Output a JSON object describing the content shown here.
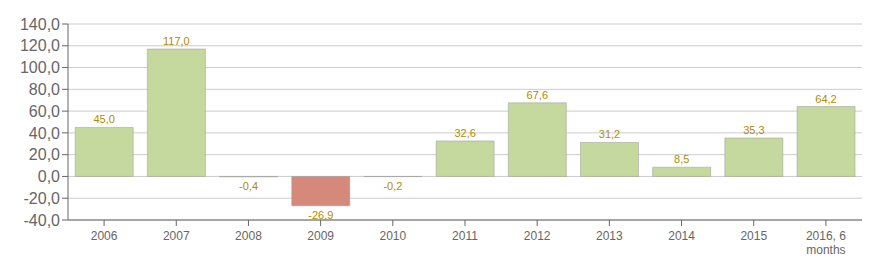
{
  "chart_data": {
    "type": "bar",
    "categories": [
      "2006",
      "2007",
      "2008",
      "2009",
      "2010",
      "2011",
      "2012",
      "2013",
      "2014",
      "2015",
      "2016, 6\nmonths"
    ],
    "values": [
      45.0,
      117.0,
      -0.4,
      -26.9,
      -0.2,
      32.6,
      67.6,
      31.2,
      8.5,
      35.3,
      64.2
    ],
    "value_labels": [
      "45,0",
      "117,0",
      "-0,4",
      "-26,9",
      "-0,2",
      "32,6",
      "67,6",
      "31,2",
      "8,5",
      "35,3",
      "64,2"
    ],
    "colors": [
      "#c5d89d",
      "#c5d89d",
      "#c5d89d",
      "#d4897a",
      "#c5d89d",
      "#c5d89d",
      "#c5d89d",
      "#c5d89d",
      "#c5d89d",
      "#c5d89d",
      "#c5d89d"
    ],
    "ylim": [
      -40,
      140
    ],
    "yticks": [
      {
        "value": -40,
        "label": "-40,0"
      },
      {
        "value": -20,
        "label": "-20,0"
      },
      {
        "value": 0,
        "label": "0,0"
      },
      {
        "value": 20,
        "label": "20,0"
      },
      {
        "value": 40,
        "label": "40,0"
      },
      {
        "value": 60,
        "label": "60,0"
      },
      {
        "value": 80,
        "label": "80,0"
      },
      {
        "value": 100,
        "label": "100,0"
      },
      {
        "value": 120,
        "label": "120,0"
      },
      {
        "value": 140,
        "label": "140,0"
      }
    ],
    "grid": true,
    "data_labels": true
  }
}
